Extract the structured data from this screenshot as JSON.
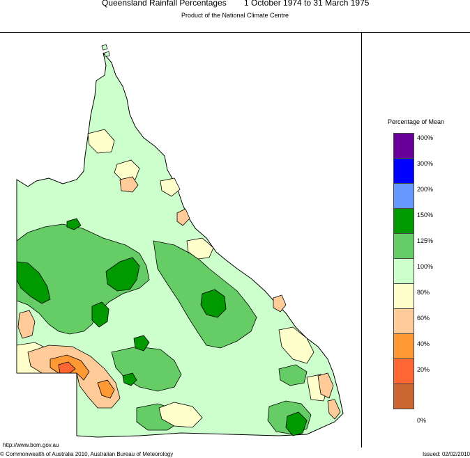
{
  "title": {
    "main": "Queensland Rainfall Percentages",
    "period": "1 October 1974 to 31 March 1975"
  },
  "subtitle": "Product of the National Climate Centre",
  "legend": {
    "title": "Percentage of Mean",
    "classes": [
      {
        "color": "#6a0099",
        "label": "400%"
      },
      {
        "color": "#0000ff",
        "label": "300%"
      },
      {
        "color": "#6699ff",
        "label": "200%"
      },
      {
        "color": "#009900",
        "label": "150%"
      },
      {
        "color": "#66cc66",
        "label": "125%"
      },
      {
        "color": "#ccffcc",
        "label": "100%"
      },
      {
        "color": "#ffffcc",
        "label": "80%"
      },
      {
        "color": "#ffcc99",
        "label": "60%"
      },
      {
        "color": "#ff9933",
        "label": "40%"
      },
      {
        "color": "#ff6633",
        "label": "20%"
      },
      {
        "color": "#cc6633",
        "label": "0%"
      }
    ]
  },
  "footer": {
    "url": "http://www.bom.gov.au",
    "copyright": "© Commonwealth of Australia 2010, Australian Bureau of Meteorology",
    "issued": "Issued: 02/02/2010"
  }
}
